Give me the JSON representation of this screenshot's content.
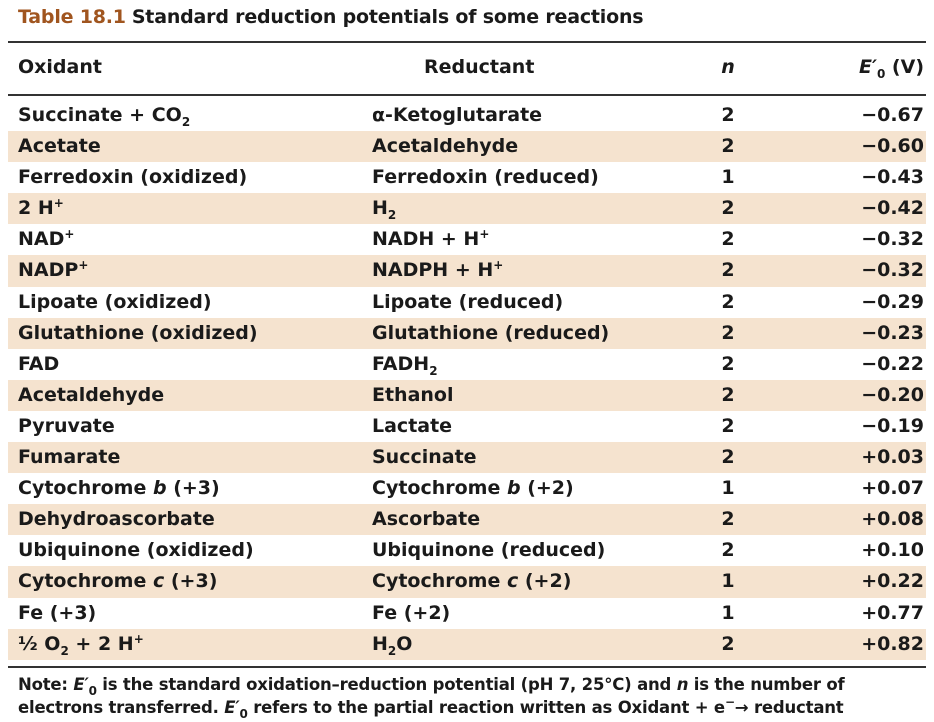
{
  "title": {
    "label": "Table 18.1",
    "text": "Standard reduction potentials of some reactions"
  },
  "headers": {
    "oxidant": "Oxidant",
    "reductant": "Reductant",
    "n": "n",
    "e_main": "E",
    "e_prime": "′",
    "e_sub": "0",
    "e_unit": " (V)"
  },
  "rows": [
    {
      "ox": "Succinate + CO",
      "ox_sub": "2",
      "ox_sup": "",
      "ox_tail": "",
      "red": "α-Ketoglutarate",
      "red_sub": "",
      "red_sup": "",
      "red_tail": "",
      "n": "2",
      "e": "−0.67"
    },
    {
      "ox": "Acetate",
      "ox_sub": "",
      "ox_sup": "",
      "ox_tail": "",
      "red": "Acetaldehyde",
      "red_sub": "",
      "red_sup": "",
      "red_tail": "",
      "n": "2",
      "e": "−0.60"
    },
    {
      "ox": "Ferredoxin (oxidized)",
      "ox_sub": "",
      "ox_sup": "",
      "ox_tail": "",
      "red": "Ferredoxin (reduced)",
      "red_sub": "",
      "red_sup": "",
      "red_tail": "",
      "n": "1",
      "e": "−0.43"
    },
    {
      "ox": "2 H",
      "ox_sub": "",
      "ox_sup": "+",
      "ox_tail": "",
      "red": "H",
      "red_sub": "2",
      "red_sup": "",
      "red_tail": "",
      "n": "2",
      "e": "−0.42"
    },
    {
      "ox": "NAD",
      "ox_sub": "",
      "ox_sup": "+",
      "ox_tail": "",
      "red": "NADH + H",
      "red_sub": "",
      "red_sup": "+",
      "red_tail": "",
      "n": "2",
      "e": "−0.32"
    },
    {
      "ox": "NADP",
      "ox_sub": "",
      "ox_sup": "+",
      "ox_tail": "",
      "red": "NADPH + H",
      "red_sub": "",
      "red_sup": "+",
      "red_tail": "",
      "n": "2",
      "e": "−0.32"
    },
    {
      "ox": "Lipoate (oxidized)",
      "ox_sub": "",
      "ox_sup": "",
      "ox_tail": "",
      "red": "Lipoate (reduced)",
      "red_sub": "",
      "red_sup": "",
      "red_tail": "",
      "n": "2",
      "e": "−0.29"
    },
    {
      "ox": "Glutathione (oxidized)",
      "ox_sub": "",
      "ox_sup": "",
      "ox_tail": "",
      "red": "Glutathione (reduced)",
      "red_sub": "",
      "red_sup": "",
      "red_tail": "",
      "n": "2",
      "e": "−0.23"
    },
    {
      "ox": "FAD",
      "ox_sub": "",
      "ox_sup": "",
      "ox_tail": "",
      "red": "FADH",
      "red_sub": "2",
      "red_sup": "",
      "red_tail": "",
      "n": "2",
      "e": "−0.22"
    },
    {
      "ox": "Acetaldehyde",
      "ox_sub": "",
      "ox_sup": "",
      "ox_tail": "",
      "red": "Ethanol",
      "red_sub": "",
      "red_sup": "",
      "red_tail": "",
      "n": "2",
      "e": "−0.20"
    },
    {
      "ox": "Pyruvate",
      "ox_sub": "",
      "ox_sup": "",
      "ox_tail": "",
      "red": "Lactate",
      "red_sub": "",
      "red_sup": "",
      "red_tail": "",
      "n": "2",
      "e": "−0.19"
    },
    {
      "ox": "Fumarate",
      "ox_sub": "",
      "ox_sup": "",
      "ox_tail": "",
      "red": "Succinate",
      "red_sub": "",
      "red_sup": "",
      "red_tail": "",
      "n": "2",
      "e": "+0.03"
    },
    {
      "ox": "Cytochrome ",
      "ox_it": "b",
      "ox_sub": "",
      "ox_sup": "",
      "ox_tail": " (+3)",
      "red": "Cytochrome ",
      "red_it": "b",
      "red_sub": "",
      "red_sup": "",
      "red_tail": " (+2)",
      "n": "1",
      "e": "+0.07"
    },
    {
      "ox": "Dehydroascorbate",
      "ox_sub": "",
      "ox_sup": "",
      "ox_tail": "",
      "red": "Ascorbate",
      "red_sub": "",
      "red_sup": "",
      "red_tail": "",
      "n": "2",
      "e": "+0.08"
    },
    {
      "ox": "Ubiquinone (oxidized)",
      "ox_sub": "",
      "ox_sup": "",
      "ox_tail": "",
      "red": "Ubiquinone (reduced)",
      "red_sub": "",
      "red_sup": "",
      "red_tail": "",
      "n": "2",
      "e": "+0.10"
    },
    {
      "ox": "Cytochrome ",
      "ox_it": "c",
      "ox_sub": "",
      "ox_sup": "",
      "ox_tail": " (+3)",
      "red": "Cytochrome ",
      "red_it": "c",
      "red_sub": "",
      "red_sup": "",
      "red_tail": " (+2)",
      "n": "1",
      "e": "+0.22"
    },
    {
      "ox": "Fe (+3)",
      "ox_sub": "",
      "ox_sup": "",
      "ox_tail": "",
      "red": "Fe (+2)",
      "red_sub": "",
      "red_sup": "",
      "red_tail": "",
      "n": "1",
      "e": "+0.77"
    },
    {
      "ox": "½ O",
      "ox_sub": "2",
      "ox_sup": "",
      "ox_tail": " + 2 H",
      "ox_tail_sup": "+",
      "red": "H",
      "red_sub": "2",
      "red_sup": "",
      "red_tail": "O",
      "n": "2",
      "e": "+0.82"
    }
  ],
  "note": {
    "p1": "Note: ",
    "e1": "E",
    "prime1": "′",
    "sub1": "0",
    "p2": " is the standard oxidation–reduction potential (pH 7, 25°C) and ",
    "n": "n",
    "p3": " is the number of electrons transferred. ",
    "e2": "E",
    "prime2": "′",
    "sub2": "0",
    "p4": " refers to the partial reaction written as Oxidant + e",
    "sup": "−",
    "p5": "→ reductant"
  },
  "colors": {
    "title_label": "#a0551f",
    "row_shade": "#f5e3cf"
  }
}
